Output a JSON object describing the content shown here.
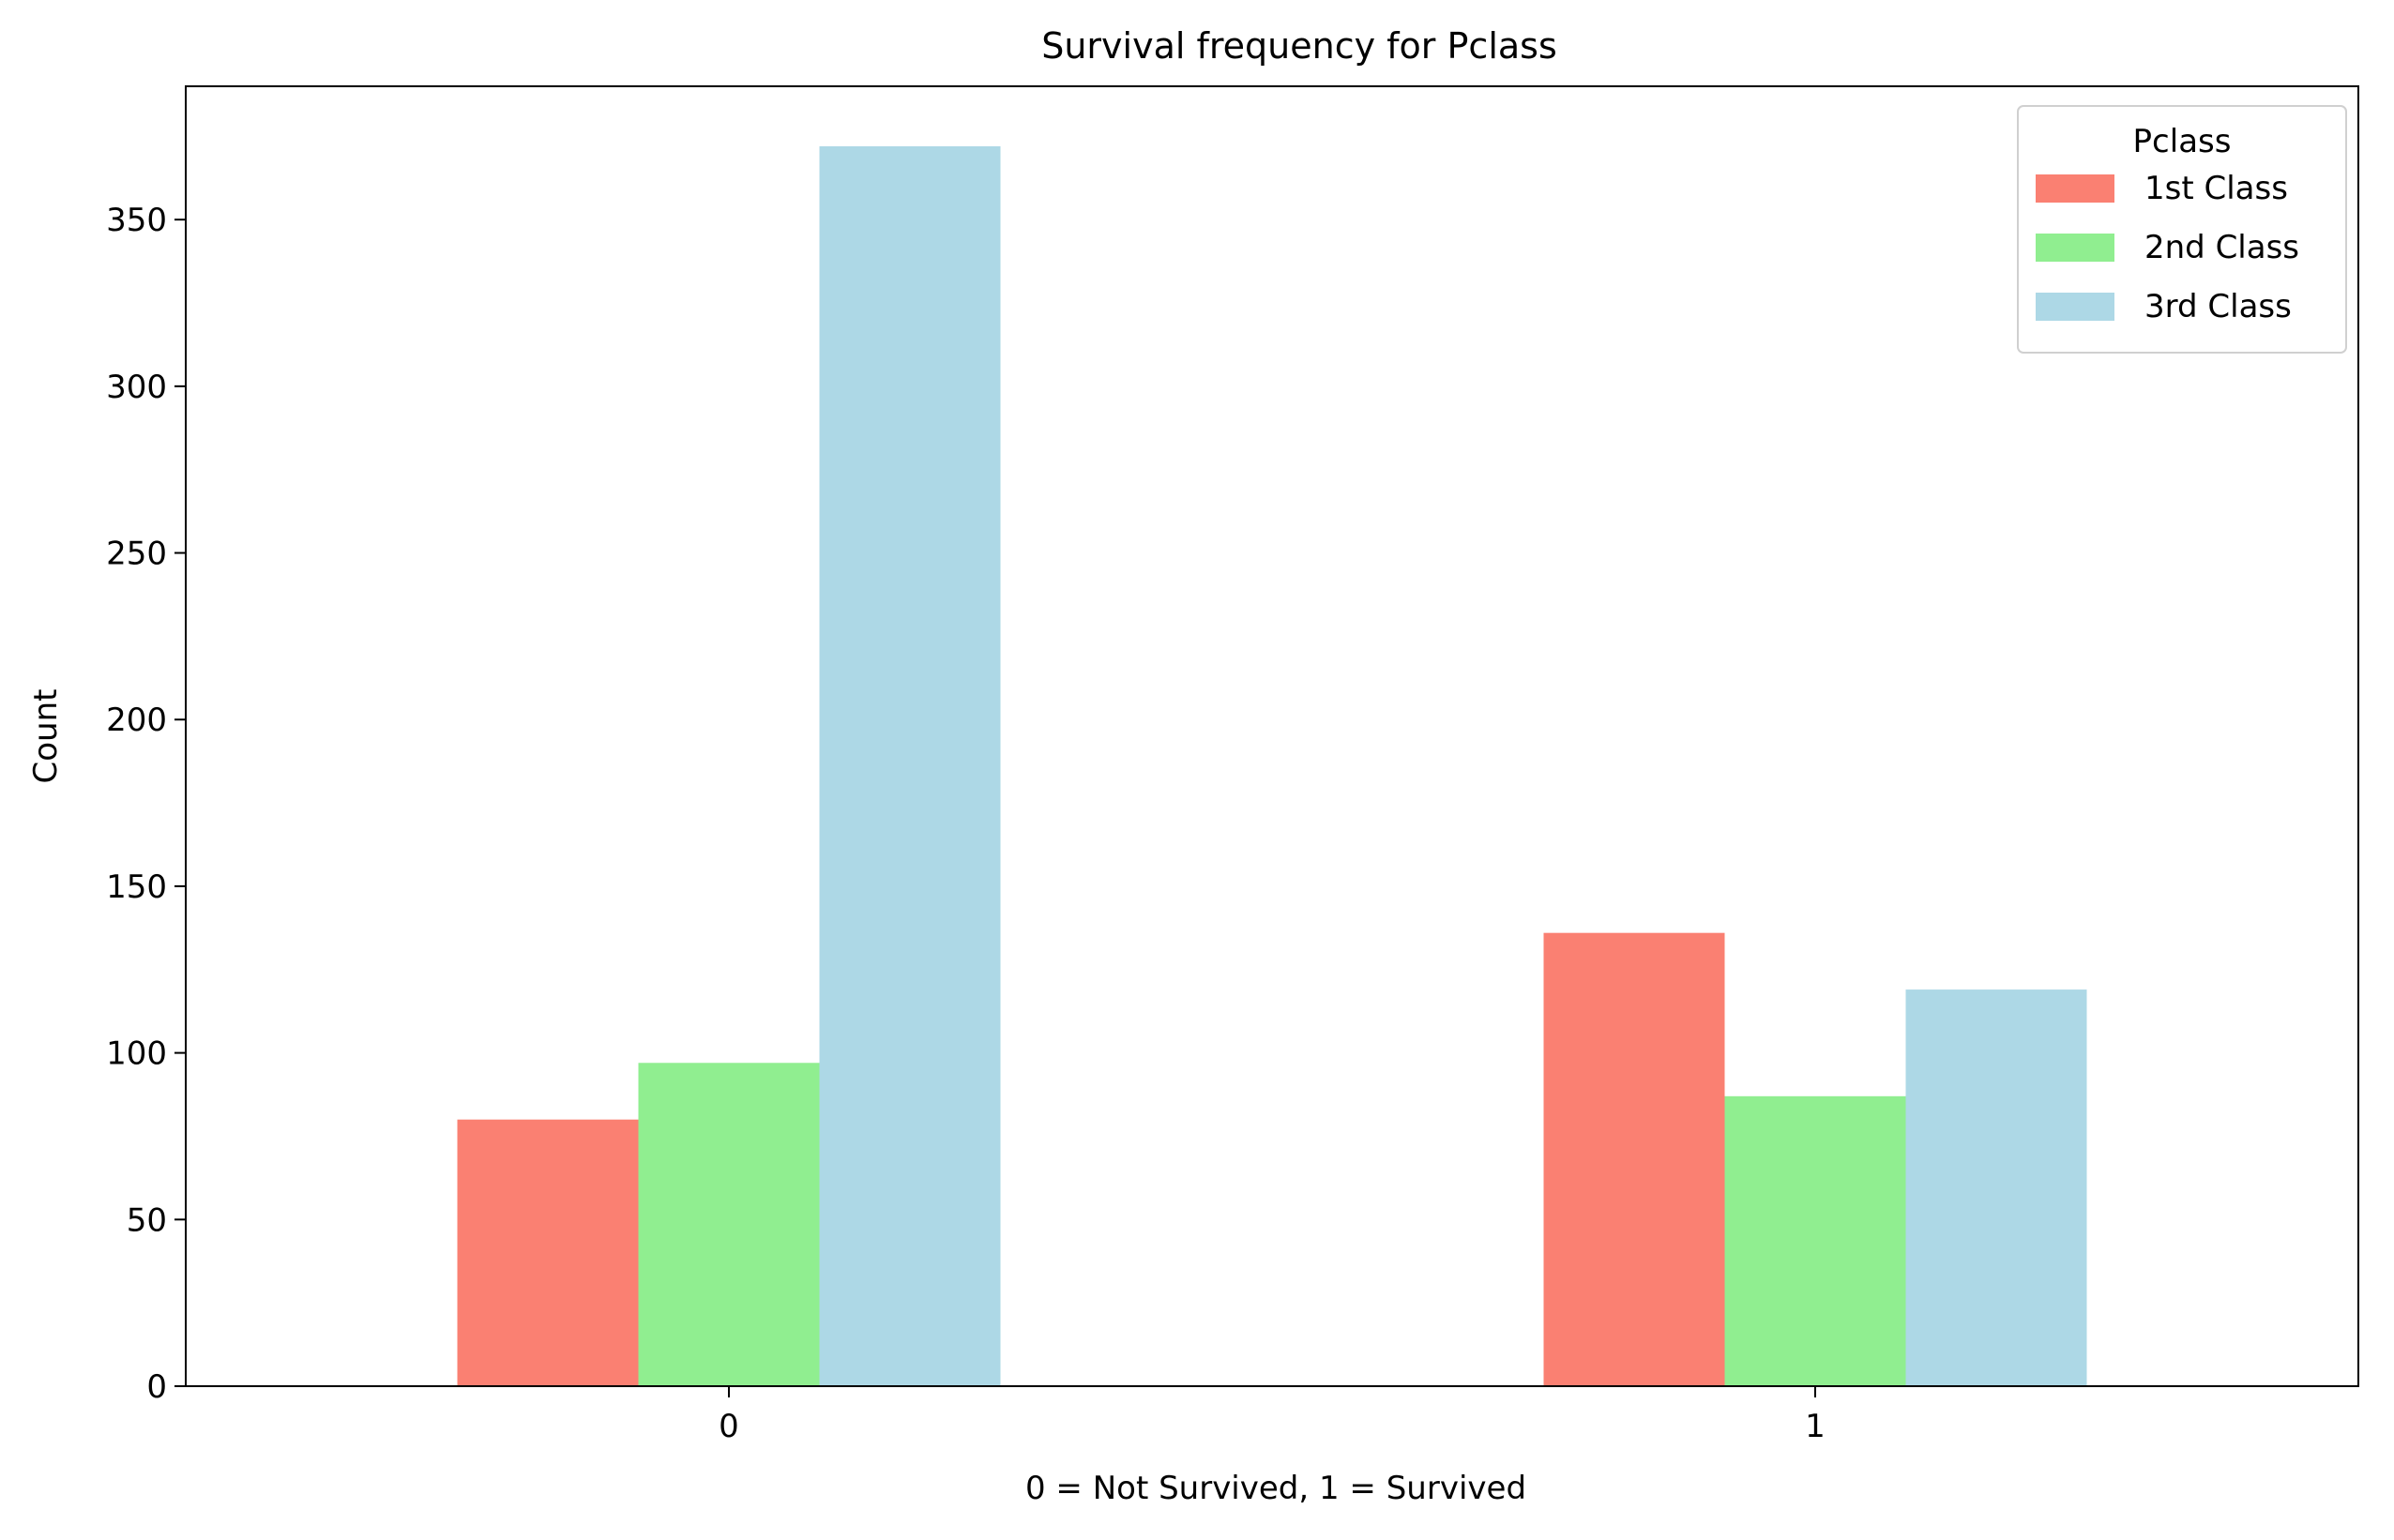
{
  "chart_data": {
    "type": "bar",
    "title": "Survival frequency for Pclass",
    "xlabel": "0 = Not Survived, 1 = Survived",
    "ylabel": "Count",
    "categories": [
      "0",
      "1"
    ],
    "series": [
      {
        "name": "1st Class",
        "color": "#FA8072",
        "values": [
          80,
          136
        ]
      },
      {
        "name": "2nd Class",
        "color": "#90EE90",
        "values": [
          97,
          87
        ]
      },
      {
        "name": "3rd Class",
        "color": "#ADD8E6",
        "values": [
          372,
          119
        ]
      }
    ],
    "ylim": [
      0,
      390
    ],
    "yticks": [
      0,
      50,
      100,
      150,
      200,
      250,
      300,
      350
    ],
    "grid": false,
    "legend": {
      "title": "Pclass",
      "placement": "top-right"
    }
  }
}
